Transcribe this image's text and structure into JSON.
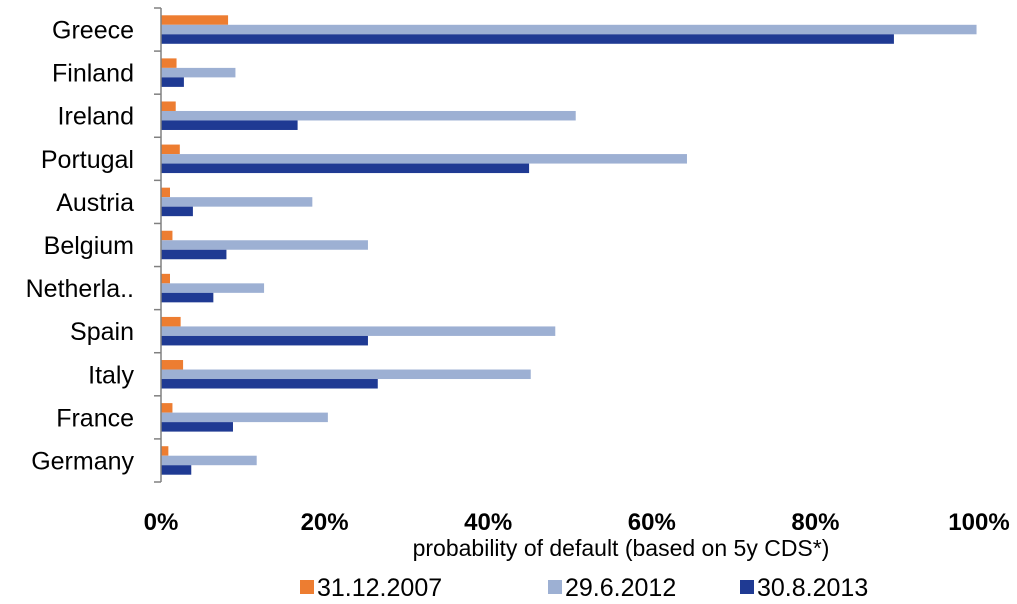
{
  "chart_data": {
    "type": "bar",
    "orientation": "horizontal",
    "categories": [
      "Greece",
      "Finland",
      "Ireland",
      "Portugal",
      "Austria",
      "Belgium",
      "Netherla..",
      "Spain",
      "Italy",
      "France",
      "Germany"
    ],
    "series": [
      {
        "name": "31.12.2007",
        "color": "#ED7D31",
        "values": [
          8.2,
          1.9,
          1.8,
          2.3,
          1.1,
          1.4,
          1.1,
          2.4,
          2.7,
          1.4,
          0.9
        ]
      },
      {
        "name": "29.6.2012",
        "color": "#9DB0D3",
        "values": [
          99.7,
          9.1,
          50.7,
          64.3,
          18.5,
          25.3,
          12.6,
          48.2,
          45.2,
          20.4,
          11.7
        ]
      },
      {
        "name": "30.8.2013",
        "color": "#1F3A93",
        "values": [
          89.6,
          2.8,
          16.7,
          45.0,
          3.9,
          8.0,
          6.4,
          25.3,
          26.5,
          8.8,
          3.7
        ]
      }
    ],
    "xlabel": "probability of default (based on 5y CDS*)",
    "xlim": [
      0,
      100
    ],
    "xticks": [
      "0%",
      "20%",
      "40%",
      "60%",
      "80%",
      "100%"
    ],
    "grid": false,
    "legend_position": "bottom"
  }
}
